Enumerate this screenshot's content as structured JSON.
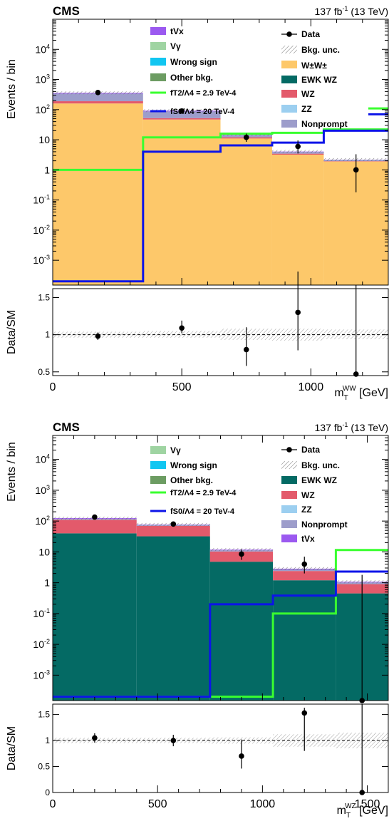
{
  "chart_data": [
    {
      "type": "bar",
      "experiment": "CMS",
      "lumi": "137 fb",
      "lumi_sup": "-1",
      "energy": " (13 TeV)",
      "ylabel": "Events / bin",
      "xlabel": "m",
      "xlabel_sub": "T",
      "xlabel_sup": "WW",
      "xlabel_unit": " [GeV]",
      "ratio_ylabel": "Data/SM",
      "yscale": "log",
      "xlim": [
        0,
        1300
      ],
      "ylim": [
        0.00015,
        100000
      ],
      "ratio_ylim": [
        0.45,
        1.62
      ],
      "y_ticks": [
        "10-3",
        "10-2",
        "10-1",
        "1",
        "10",
        "102",
        "103",
        "104"
      ],
      "x_ticks": [
        0,
        500,
        1000
      ],
      "ratio_ticks": [
        0.5,
        1,
        1.5
      ],
      "bins": [
        0,
        350,
        650,
        850,
        1050,
        1300
      ],
      "stack": [
        {
          "name": "W±W±",
          "color": "#fdc86a",
          "values": [
            160,
            47,
            11,
            3.2,
            1.9
          ]
        },
        {
          "name": "EWK WZ",
          "color": "#046a64",
          "values": [
            0,
            0,
            0,
            0,
            0
          ]
        },
        {
          "name": "WZ",
          "color": "#e35a6b",
          "values": [
            30,
            5,
            1.1,
            0.25,
            0.05
          ]
        },
        {
          "name": "Nonprompt",
          "color": "#9d9dcb",
          "values": [
            150,
            35,
            2.5,
            0.5,
            0.2
          ]
        },
        {
          "name": "tVx",
          "color": "#9b59f0",
          "values": [
            20,
            5,
            0.6,
            0.1,
            0.03
          ]
        }
      ],
      "data": {
        "x": [
          175,
          500,
          750,
          950,
          1175
        ],
        "y": [
          370,
          90,
          12,
          6,
          1
        ],
        "err_lo": [
          20,
          10,
          3.5,
          2.5,
          0.82
        ],
        "err_hi": [
          20,
          10,
          4,
          3.5,
          2.3
        ]
      },
      "signals": [
        {
          "name": "fT2/Λ4 = 2.9 TeV-4",
          "color": "#39ff2f",
          "values": [
            1,
            12,
            16,
            17,
            22
          ],
          "tail": 110
        },
        {
          "name": "fS0/Λ4 = 20 TeV-4",
          "color": "#0c14e8",
          "values": [
            0.0002,
            4,
            6.5,
            8,
            20
          ],
          "tail": 70
        }
      ],
      "ratio": {
        "x": [
          175,
          500,
          750,
          950,
          1175
        ],
        "y": [
          0.98,
          1.09,
          0.8,
          1.3,
          0.47
        ],
        "err_lo": [
          0.05,
          0.07,
          0.22,
          0.51,
          0.5
        ],
        "err_hi": [
          0.05,
          0.1,
          0.3,
          0.55,
          1.2
        ],
        "unc_lo": [
          0.96,
          0.96,
          0.93,
          0.92,
          0.94
        ],
        "unc_hi": [
          1.04,
          1.05,
          1.08,
          1.08,
          1.07
        ]
      },
      "legend_left": [
        "tVx",
        "Vγ",
        "Wrong sign",
        "Other bkg.",
        "fT2/Λ4 = 2.9 TeV-4",
        "fS0/Λ4 = 20 TeV-4"
      ],
      "legend_right": [
        "Data",
        "Bkg. unc.",
        "W±W±",
        "EWK WZ",
        "WZ",
        "ZZ",
        "Nonprompt"
      ]
    },
    {
      "type": "bar",
      "experiment": "CMS",
      "lumi": "137 fb",
      "lumi_sup": "-1",
      "energy": " (13 TeV)",
      "ylabel": "Events / bin",
      "xlabel": "m",
      "xlabel_sub": "T",
      "xlabel_sup": "WZ",
      "xlabel_unit": " [GeV]",
      "ratio_ylabel": "Data/SM",
      "yscale": "log",
      "xlim": [
        0,
        1600
      ],
      "ylim": [
        0.00015,
        60000
      ],
      "ratio_ylim": [
        0,
        1.7
      ],
      "y_ticks": [
        "10-3",
        "10-2",
        "10-1",
        "1",
        "10",
        "102",
        "103",
        "104"
      ],
      "x_ticks": [
        0,
        500,
        1000,
        1500
      ],
      "ratio_ticks": [
        0,
        0.5,
        1,
        1.5
      ],
      "bins": [
        0,
        400,
        750,
        1050,
        1350,
        1600
      ],
      "stack": [
        {
          "name": "EWK WZ",
          "color": "#046a64",
          "values": [
            40,
            32,
            4.8,
            1.2,
            0.45
          ]
        },
        {
          "name": "WZ",
          "color": "#e35a6b",
          "values": [
            70,
            38,
            5.5,
            1.2,
            0.45
          ]
        },
        {
          "name": "Nonprompt",
          "color": "#9d9dcb",
          "values": [
            8,
            5,
            1,
            0.3,
            0.12
          ]
        },
        {
          "name": "tVx",
          "color": "#9b59f0",
          "values": [
            6,
            2,
            0.5,
            0.15,
            0.05
          ]
        }
      ],
      "data": {
        "x": [
          200,
          575,
          900,
          1200,
          1475
        ],
        "y": [
          135,
          80,
          8.5,
          4,
          0.00015
        ],
        "err_lo": [
          12,
          9,
          3,
          2,
          0
        ],
        "err_hi": [
          12,
          9,
          3.5,
          3,
          1.8
        ]
      },
      "signals": [
        {
          "name": "fT2/Λ4 = 2.9 TeV-4",
          "color": "#39ff2f",
          "values": [
            0.0002,
            0.0002,
            0.0002,
            0.1,
            2,
            11.5
          ]
        },
        {
          "name": "fS0/Λ4 = 20 TeV-4",
          "color": "#0c14e8",
          "values": [
            0.0002,
            0.0002,
            0.2,
            0.38,
            2.3,
            2.3
          ]
        }
      ],
      "signal_bins": [
        0,
        400,
        750,
        1050,
        1350,
        1350,
        1600
      ],
      "ratio": {
        "x": [
          200,
          575,
          900,
          1200,
          1475
        ],
        "y": [
          1.05,
          1.0,
          0.7,
          1.53,
          0.0
        ],
        "err_lo": [
          0.09,
          0.11,
          0.24,
          0.73,
          0
        ],
        "err_hi": [
          0.09,
          0.11,
          0.32,
          0.1,
          1.7
        ],
        "unc_lo": [
          0.95,
          0.95,
          0.94,
          0.88,
          0.85
        ],
        "unc_hi": [
          1.05,
          1.05,
          1.06,
          1.12,
          1.15
        ]
      },
      "legend_left": [
        "Vγ",
        "Wrong sign",
        "Other bkg.",
        "fT2/Λ4 = 2.9 TeV-4",
        "fS0/Λ4 = 20 TeV-4"
      ],
      "legend_right": [
        "Data",
        "Bkg. unc.",
        "EWK WZ",
        "WZ",
        "ZZ",
        "Nonprompt",
        "tVx"
      ]
    }
  ],
  "legend_colors": {
    "tVx": "#9b59f0",
    "Vgamma": "#9fd4a2",
    "Wrong sign": "#12c6f1",
    "Other bkg.": "#6c9c62",
    "WW": "#fdc86a",
    "EWK WZ": "#046a64",
    "WZ": "#e35a6b",
    "ZZ": "#9ccff0",
    "Nonprompt": "#9d9dcb",
    "fT2": "#39ff2f",
    "fS0": "#0c14e8"
  }
}
